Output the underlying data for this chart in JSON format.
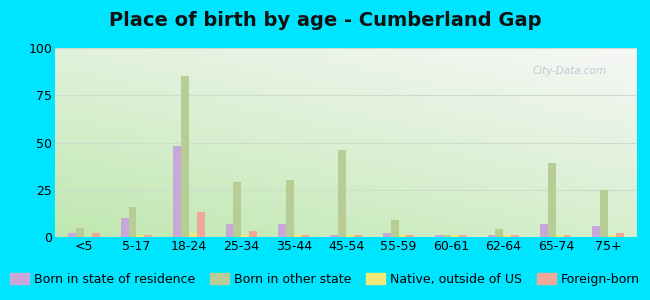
{
  "title": "Place of birth by age - Cumberland Gap",
  "categories": [
    "<5",
    "5-17",
    "18-24",
    "25-34",
    "35-44",
    "45-54",
    "55-59",
    "60-61",
    "62-64",
    "65-74",
    "75+"
  ],
  "series": {
    "Born in state of residence": [
      2,
      10,
      48,
      7,
      7,
      1,
      2,
      1,
      1,
      7,
      6
    ],
    "Born in other state": [
      5,
      16,
      85,
      29,
      30,
      46,
      9,
      1,
      4,
      39,
      25
    ],
    "Native, outside of US": [
      0,
      1,
      2,
      1,
      1,
      1,
      1,
      1,
      1,
      1,
      1
    ],
    "Foreign-born": [
      2,
      1,
      13,
      3,
      1,
      1,
      1,
      1,
      1,
      1,
      2
    ]
  },
  "colors": {
    "Born in state of residence": "#c8a8d8",
    "Born in other state": "#b8cc96",
    "Native, outside of US": "#f0e878",
    "Foreign-born": "#f0a898"
  },
  "ylim": [
    0,
    100
  ],
  "yticks": [
    0,
    25,
    50,
    75,
    100
  ],
  "bg_top_color": "#f0f8f0",
  "bg_bottom_color": "#c8ecc0",
  "bg_right_color": "#e8f4f0",
  "outer_background": "#00e5ff",
  "title_fontsize": 14,
  "legend_fontsize": 9,
  "bar_width": 0.15,
  "grid_color": "#d8e8d0",
  "axis_label_fontsize": 9
}
